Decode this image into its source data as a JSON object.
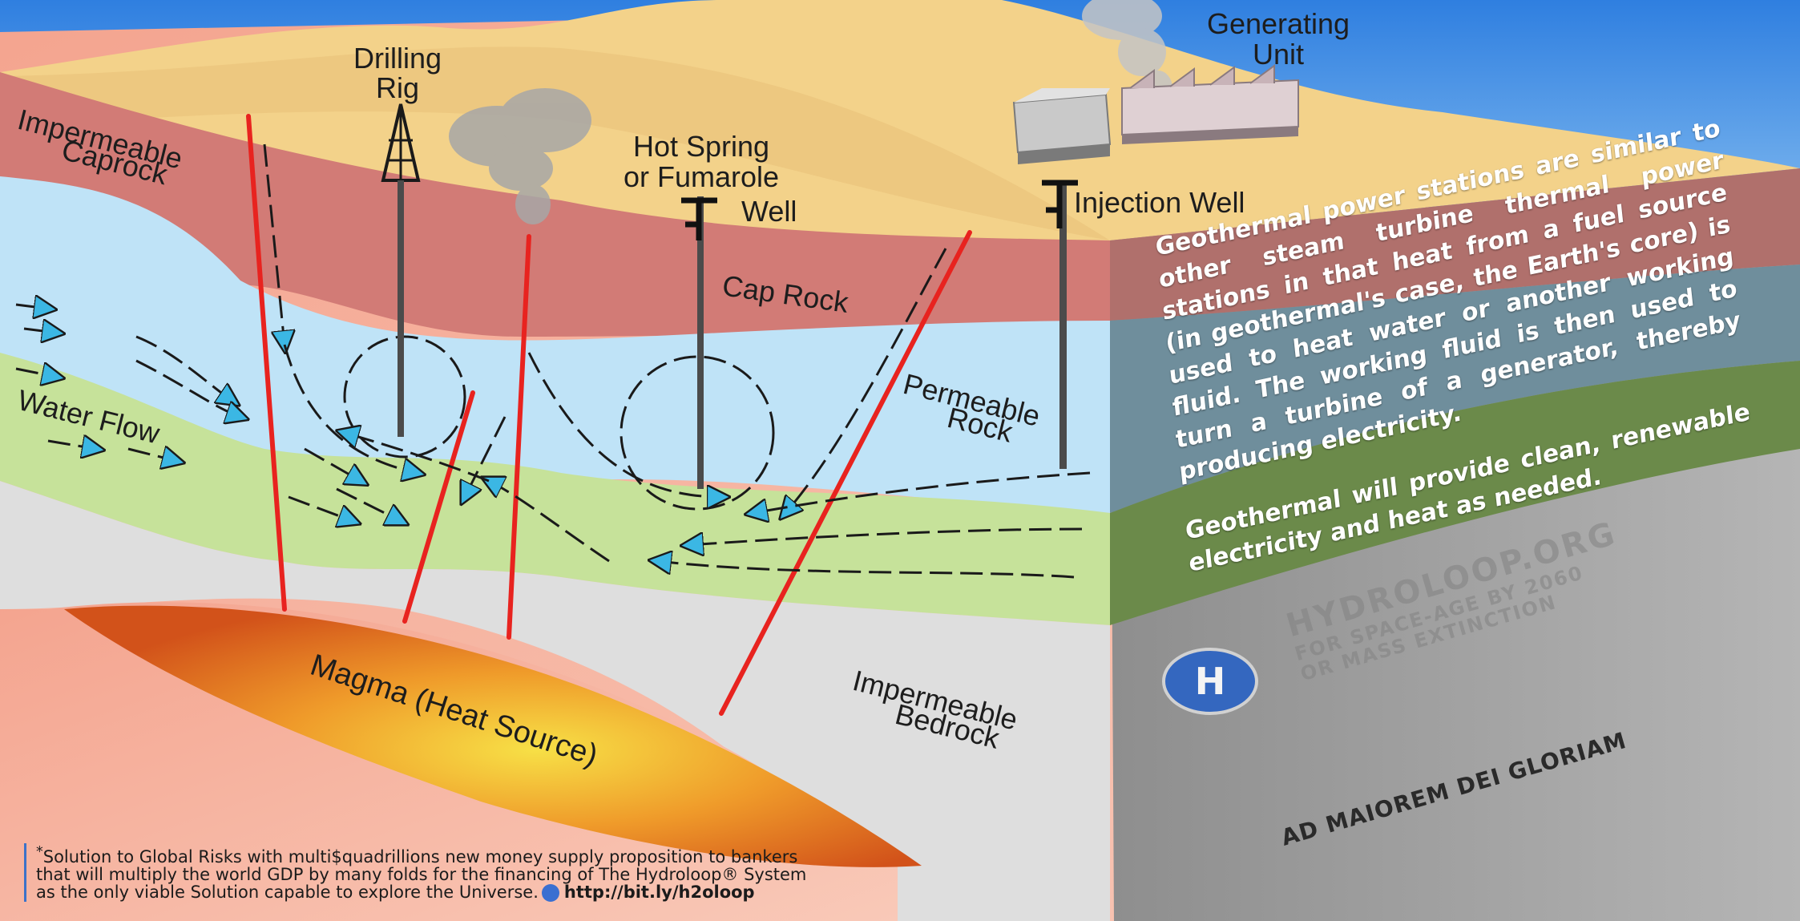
{
  "labels": {
    "drilling_rig": [
      "Drilling",
      "Rig"
    ],
    "generating_unit": [
      "Generating",
      "Unit"
    ],
    "impermeable_caprock": [
      "Impermeable",
      "Caprock"
    ],
    "hot_spring": [
      "Hot Spring",
      "or Fumarole"
    ],
    "well": "Well",
    "injection_well": "Injection Well",
    "cap_rock": "Cap Rock",
    "permeable_rock": [
      "Permeable",
      "Rock"
    ],
    "water_flow": "Water Flow",
    "magma": "Magma (Heat Source)",
    "impermeable_bedrock": [
      "Impermeable",
      "Bedrock"
    ]
  },
  "overlay": {
    "paragraph1": "Geothermal power stations are similar to other steam turbine thermal power stations in that heat from a fuel source (in geothermal's case, the Earth's core) is used to heat water or another working fluid. The working fluid is then used to turn a turbine of a generator, thereby producing electricity.",
    "paragraph2": "Geothermal will provide clean, renewable electricity and heat as needed."
  },
  "brand": {
    "name": "HYDROLOOP.ORG",
    "tagline1": "FOR SPACE-AGE BY 2060",
    "tagline2": "OR MASS EXTINCTION",
    "motto": "AD MAIOREM DEI GLORIAM"
  },
  "footnote": {
    "star": "*",
    "line1": "Solution to Global Risks with multi$quadrillions new money supply proposition to bankers",
    "line2": "that will multiply the world GDP by many folds for the financing of The Hydroloop® System",
    "line3": "as the only viable Solution capable to explore the Universe.",
    "link": "http://bit.ly/h2oloop"
  },
  "colors": {
    "sky": "#3d8be0",
    "surface": "#f3d28a",
    "caprock": "#d27b76",
    "permeable": "#bfe3f7",
    "water_layer": "#c6e29a",
    "bedrock": "#dedede",
    "magma": "#e8701f",
    "fault": "#e8231f",
    "arrow": "#3bb7e4"
  }
}
